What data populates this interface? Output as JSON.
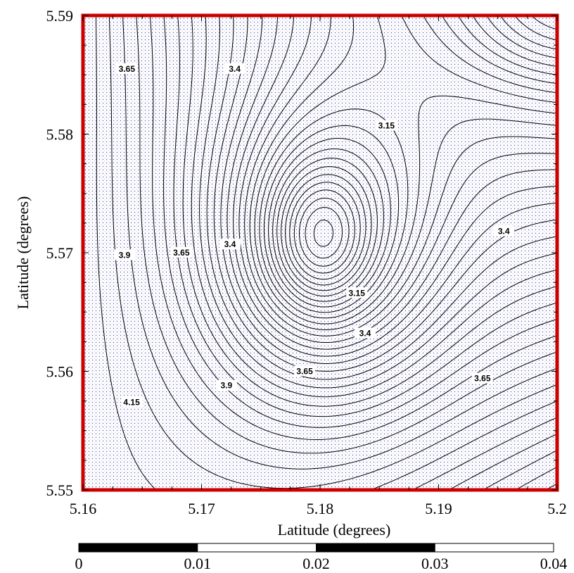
{
  "chart_data": {
    "type": "contour",
    "xlabel": "Latitude (degrees)",
    "ylabel": "Latitude (degrees)",
    "xlim": [
      5.16,
      5.2
    ],
    "ylim": [
      5.55,
      5.59
    ],
    "x_ticks": [
      "5.16",
      "5.17",
      "5.18",
      "5.19",
      "5.2"
    ],
    "y_ticks": [
      "5.55",
      "5.56",
      "5.57",
      "5.58",
      "5.59"
    ],
    "contour_labels": [
      {
        "text": "3.65",
        "x": 5.1637,
        "y": 5.5855
      },
      {
        "text": "3.4",
        "x": 5.1728,
        "y": 5.5855
      },
      {
        "text": "3.15",
        "x": 5.1856,
        "y": 5.5807
      },
      {
        "text": "3.4",
        "x": 5.1955,
        "y": 5.5718
      },
      {
        "text": "3.9",
        "x": 5.1635,
        "y": 5.5698
      },
      {
        "text": "3.65",
        "x": 5.1683,
        "y": 5.57
      },
      {
        "text": "3.4",
        "x": 5.1724,
        "y": 5.5707
      },
      {
        "text": "3.15",
        "x": 5.1831,
        "y": 5.5666
      },
      {
        "text": "3.4",
        "x": 5.1838,
        "y": 5.5632
      },
      {
        "text": "3.65",
        "x": 5.1787,
        "y": 5.56
      },
      {
        "text": "3.65",
        "x": 5.1937,
        "y": 5.5594
      },
      {
        "text": "3.9",
        "x": 5.1721,
        "y": 5.5588
      },
      {
        "text": "4.15",
        "x": 5.1641,
        "y": 5.5574
      }
    ],
    "minimum_at": [
      5.1803,
      5.5705
    ],
    "border_color": "#cc0000",
    "fill_pattern": "blue-dot stipple",
    "scale_bar": {
      "ticks": [
        "0",
        "0.01",
        "0.02",
        "0.03",
        "0.04"
      ],
      "segments": [
        "black",
        "white",
        "black",
        "white"
      ]
    }
  }
}
